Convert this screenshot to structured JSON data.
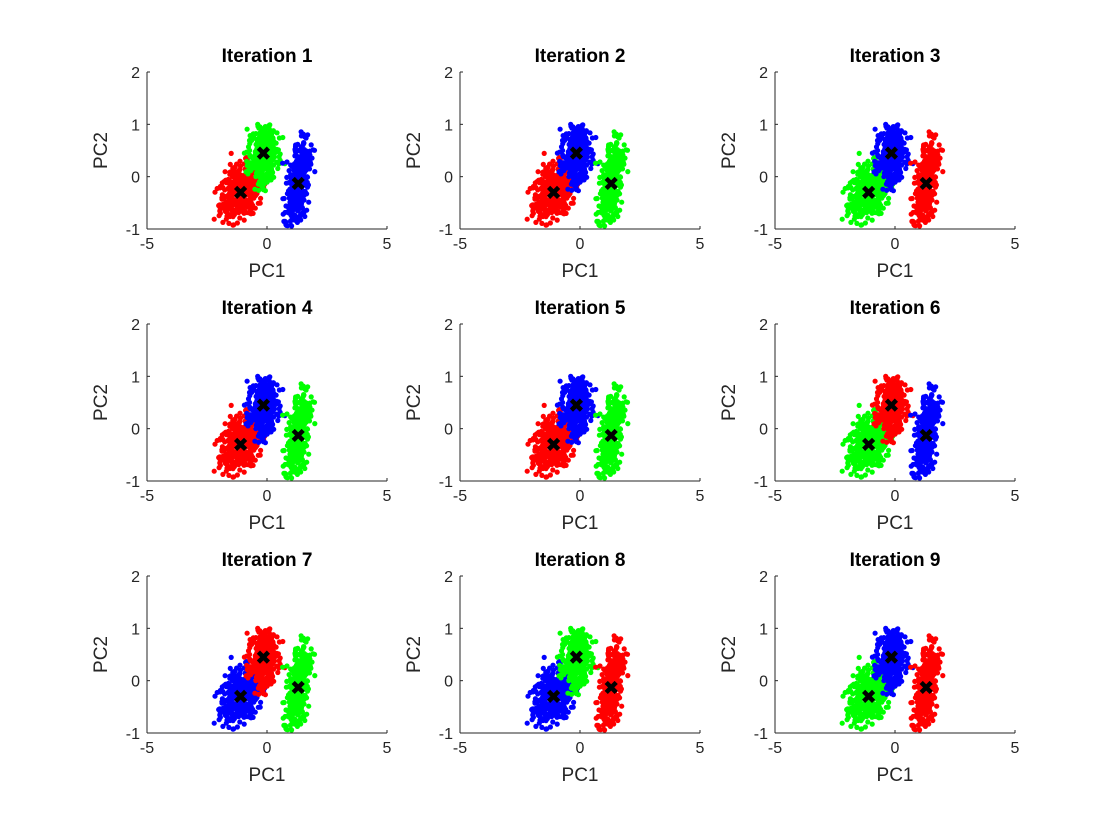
{
  "colors": {
    "red": "#ff0000",
    "green": "#00ff00",
    "blue": "#0000ff",
    "centroid": "#000000",
    "axis": "#262626"
  },
  "chart_data": [
    {
      "type": "scatter",
      "title": "Iteration 1",
      "xlabel": "PC1",
      "ylabel": "PC2",
      "xlim": [
        -5,
        5
      ],
      "ylim": [
        -1,
        2
      ],
      "xticks": [
        -5,
        0,
        5
      ],
      "yticks": [
        -1,
        0,
        1,
        2
      ],
      "grid": false,
      "clusters": [
        {
          "color": "red",
          "region": "lower-left",
          "centroid": [
            -1.1,
            -0.3
          ]
        },
        {
          "color": "green",
          "region": "top",
          "centroid": [
            -0.15,
            0.45
          ]
        },
        {
          "color": "blue",
          "region": "right",
          "centroid": [
            1.3,
            -0.13
          ]
        }
      ]
    },
    {
      "type": "scatter",
      "title": "Iteration 2",
      "xlabel": "PC1",
      "ylabel": "PC2",
      "xlim": [
        -5,
        5
      ],
      "ylim": [
        -1,
        2
      ],
      "xticks": [
        -5,
        0,
        5
      ],
      "yticks": [
        -1,
        0,
        1,
        2
      ],
      "grid": false,
      "clusters": [
        {
          "color": "red",
          "region": "lower-left",
          "centroid": [
            -1.1,
            -0.3
          ]
        },
        {
          "color": "blue",
          "region": "top",
          "centroid": [
            -0.15,
            0.45
          ]
        },
        {
          "color": "green",
          "region": "right",
          "centroid": [
            1.3,
            -0.13
          ]
        }
      ]
    },
    {
      "type": "scatter",
      "title": "Iteration 3",
      "xlabel": "PC1",
      "ylabel": "PC2",
      "xlim": [
        -5,
        5
      ],
      "ylim": [
        -1,
        2
      ],
      "xticks": [
        -5,
        0,
        5
      ],
      "yticks": [
        -1,
        0,
        1,
        2
      ],
      "grid": false,
      "clusters": [
        {
          "color": "green",
          "region": "lower-left",
          "centroid": [
            -1.1,
            -0.3
          ]
        },
        {
          "color": "blue",
          "region": "top",
          "centroid": [
            -0.15,
            0.45
          ]
        },
        {
          "color": "red",
          "region": "right",
          "centroid": [
            1.3,
            -0.13
          ]
        }
      ]
    },
    {
      "type": "scatter",
      "title": "Iteration 4",
      "xlabel": "PC1",
      "ylabel": "PC2",
      "xlim": [
        -5,
        5
      ],
      "ylim": [
        -1,
        2
      ],
      "xticks": [
        -5,
        0,
        5
      ],
      "yticks": [
        -1,
        0,
        1,
        2
      ],
      "grid": false,
      "clusters": [
        {
          "color": "red",
          "region": "lower-left",
          "centroid": [
            -1.1,
            -0.3
          ]
        },
        {
          "color": "blue",
          "region": "top",
          "centroid": [
            -0.15,
            0.45
          ]
        },
        {
          "color": "green",
          "region": "right",
          "centroid": [
            1.3,
            -0.13
          ]
        }
      ]
    },
    {
      "type": "scatter",
      "title": "Iteration 5",
      "xlabel": "PC1",
      "ylabel": "PC2",
      "xlim": [
        -5,
        5
      ],
      "ylim": [
        -1,
        2
      ],
      "xticks": [
        -5,
        0,
        5
      ],
      "yticks": [
        -1,
        0,
        1,
        2
      ],
      "grid": false,
      "clusters": [
        {
          "color": "red",
          "region": "lower-left",
          "centroid": [
            -1.1,
            -0.3
          ]
        },
        {
          "color": "blue",
          "region": "top",
          "centroid": [
            -0.15,
            0.45
          ]
        },
        {
          "color": "green",
          "region": "right",
          "centroid": [
            1.3,
            -0.13
          ]
        }
      ]
    },
    {
      "type": "scatter",
      "title": "Iteration 6",
      "xlabel": "PC1",
      "ylabel": "PC2",
      "xlim": [
        -5,
        5
      ],
      "ylim": [
        -1,
        2
      ],
      "xticks": [
        -5,
        0,
        5
      ],
      "yticks": [
        -1,
        0,
        1,
        2
      ],
      "grid": false,
      "clusters": [
        {
          "color": "green",
          "region": "lower-left",
          "centroid": [
            -1.1,
            -0.3
          ]
        },
        {
          "color": "red",
          "region": "top",
          "centroid": [
            -0.15,
            0.45
          ]
        },
        {
          "color": "blue",
          "region": "right",
          "centroid": [
            1.3,
            -0.13
          ]
        }
      ]
    },
    {
      "type": "scatter",
      "title": "Iteration 7",
      "xlabel": "PC1",
      "ylabel": "PC2",
      "xlim": [
        -5,
        5
      ],
      "ylim": [
        -1,
        2
      ],
      "xticks": [
        -5,
        0,
        5
      ],
      "yticks": [
        -1,
        0,
        1,
        2
      ],
      "grid": false,
      "clusters": [
        {
          "color": "blue",
          "region": "lower-left",
          "centroid": [
            -1.1,
            -0.3
          ]
        },
        {
          "color": "red",
          "region": "top",
          "centroid": [
            -0.15,
            0.45
          ]
        },
        {
          "color": "green",
          "region": "right",
          "centroid": [
            1.3,
            -0.13
          ]
        }
      ]
    },
    {
      "type": "scatter",
      "title": "Iteration 8",
      "xlabel": "PC1",
      "ylabel": "PC2",
      "xlim": [
        -5,
        5
      ],
      "ylim": [
        -1,
        2
      ],
      "xticks": [
        -5,
        0,
        5
      ],
      "yticks": [
        -1,
        0,
        1,
        2
      ],
      "grid": false,
      "clusters": [
        {
          "color": "blue",
          "region": "lower-left",
          "centroid": [
            -1.1,
            -0.3
          ]
        },
        {
          "color": "green",
          "region": "top",
          "centroid": [
            -0.15,
            0.45
          ]
        },
        {
          "color": "red",
          "region": "right",
          "centroid": [
            1.3,
            -0.13
          ]
        }
      ]
    },
    {
      "type": "scatter",
      "title": "Iteration 9",
      "xlabel": "PC1",
      "ylabel": "PC2",
      "xlim": [
        -5,
        5
      ],
      "ylim": [
        -1,
        2
      ],
      "xticks": [
        -5,
        0,
        5
      ],
      "yticks": [
        -1,
        0,
        1,
        2
      ],
      "grid": false,
      "clusters": [
        {
          "color": "green",
          "region": "lower-left",
          "centroid": [
            -1.1,
            -0.3
          ]
        },
        {
          "color": "blue",
          "region": "top",
          "centroid": [
            -0.15,
            0.45
          ]
        },
        {
          "color": "red",
          "region": "right",
          "centroid": [
            1.3,
            -0.13
          ]
        }
      ]
    }
  ]
}
